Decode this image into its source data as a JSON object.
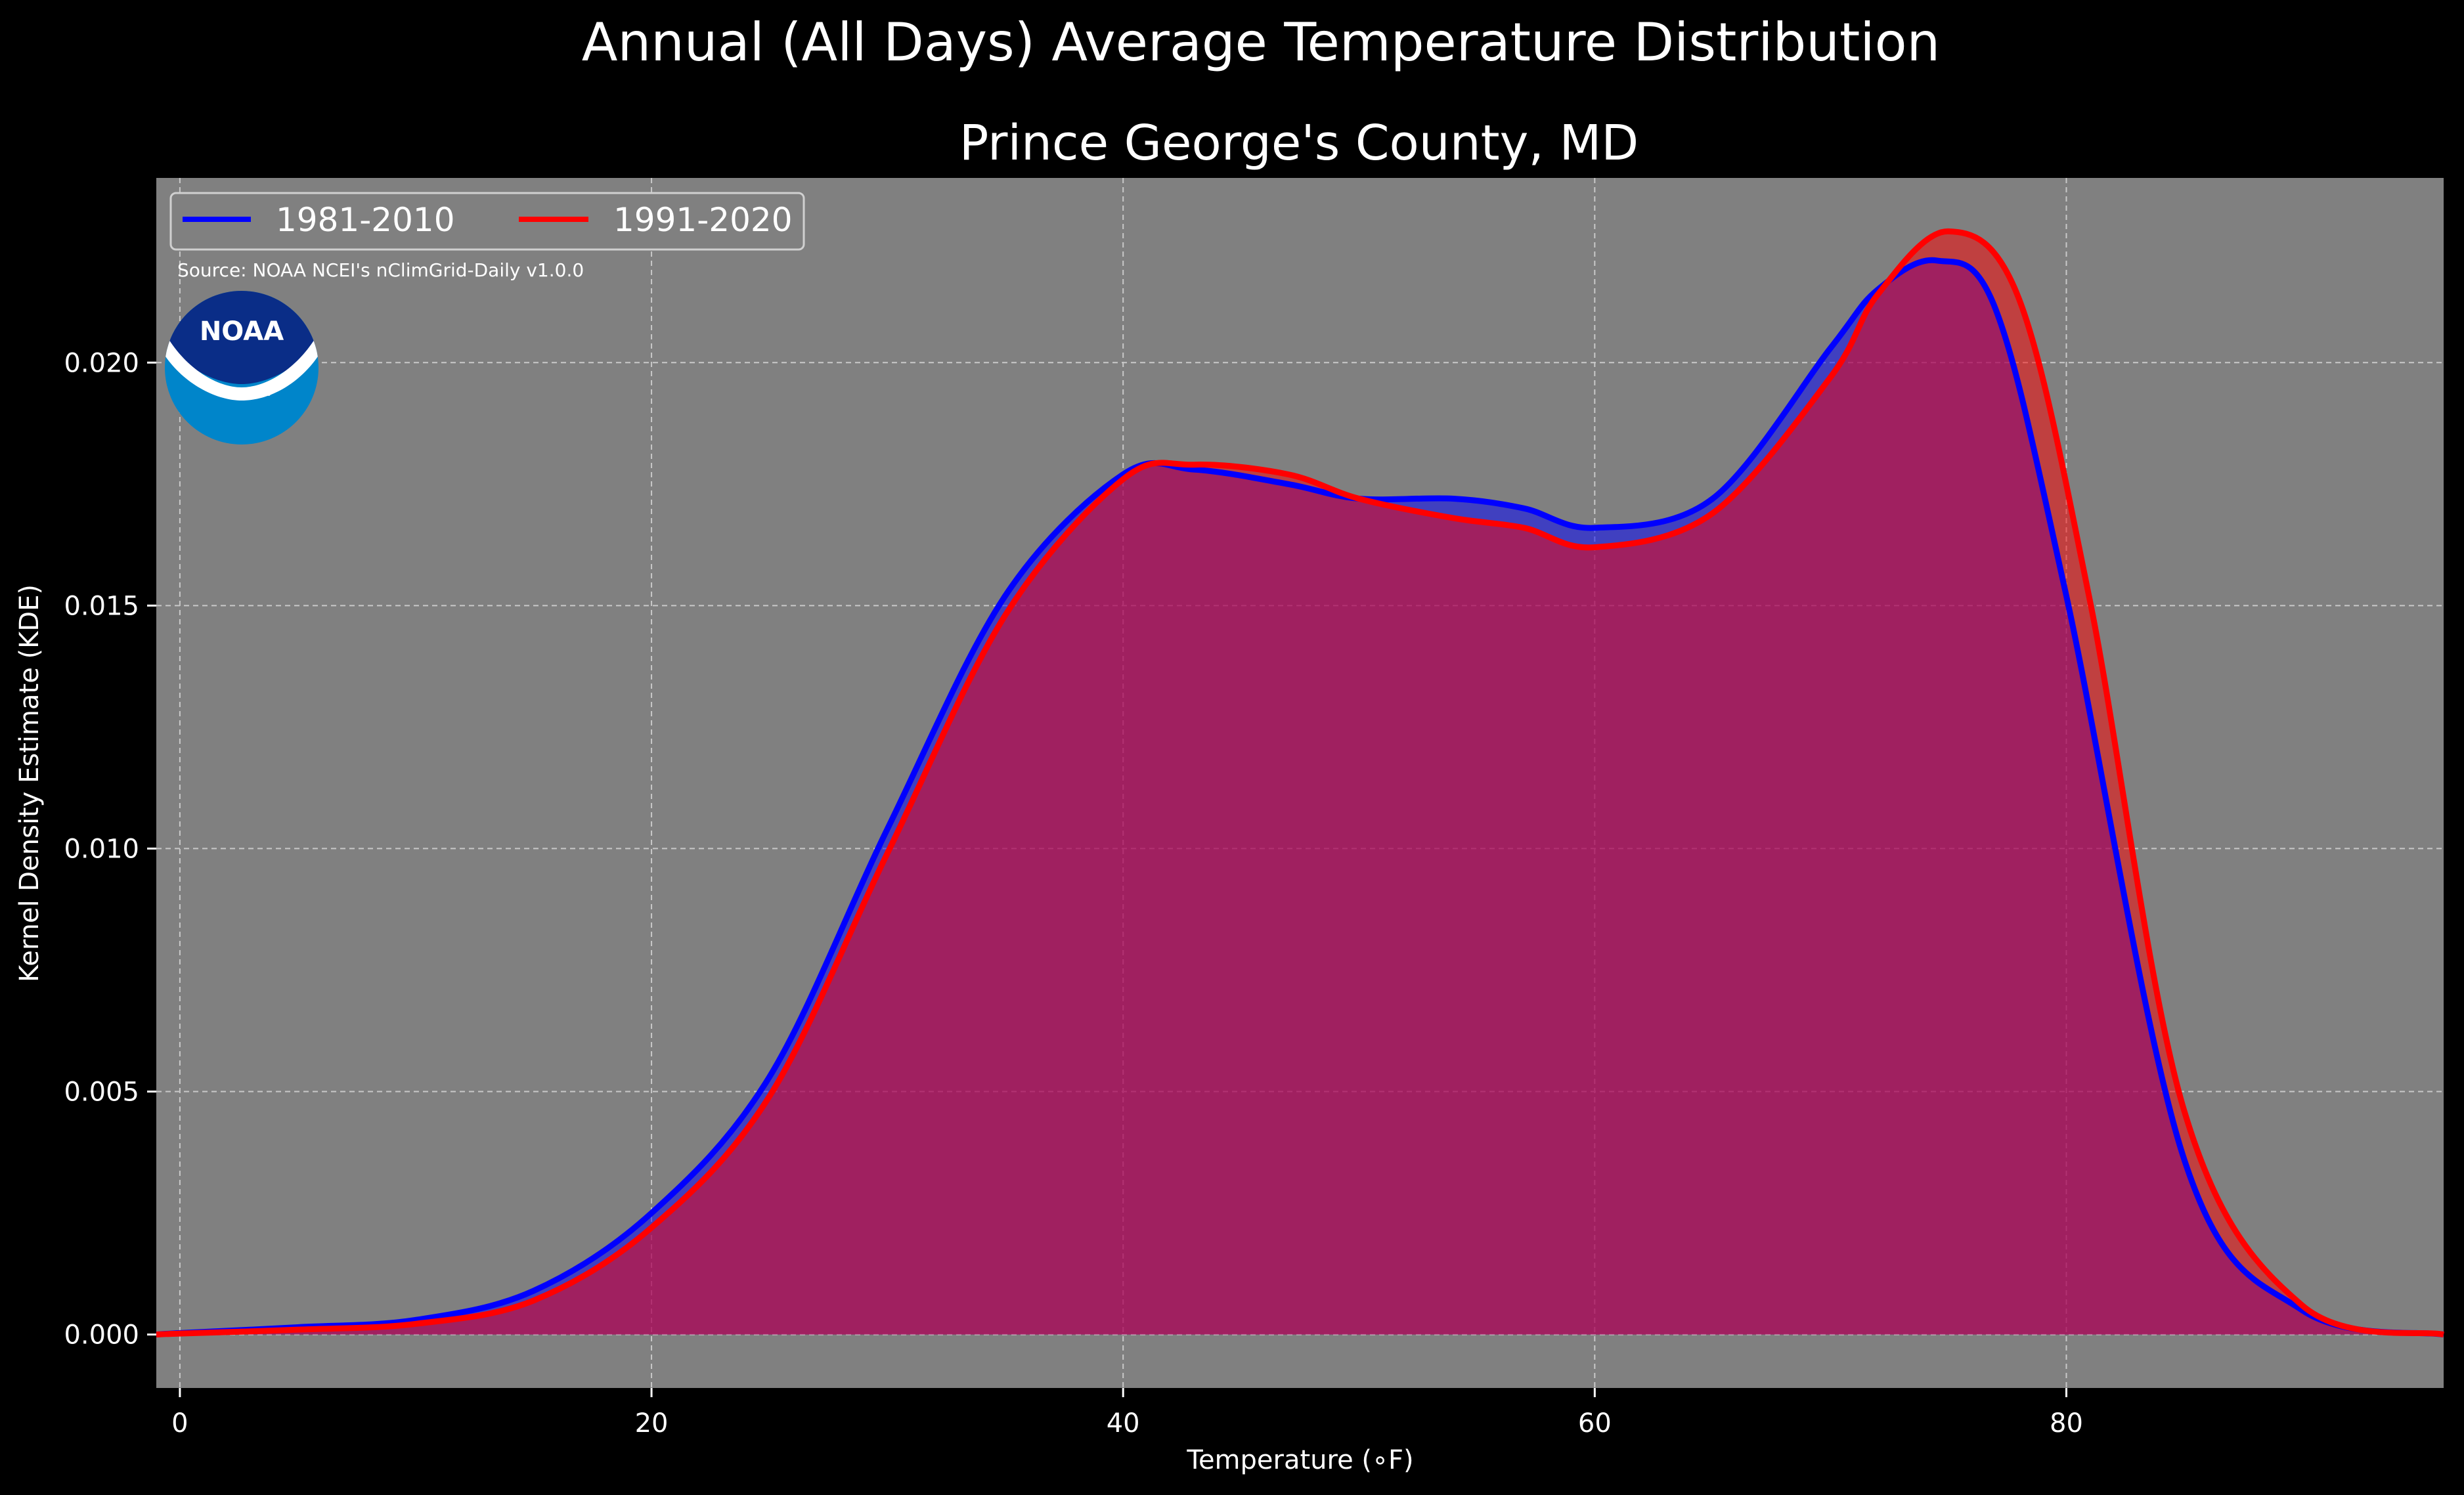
{
  "chart_data": {
    "type": "area",
    "title": "Annual (All Days) Average Temperature Distribution",
    "subtitle": "Prince George's County, MD",
    "xlabel": "Temperature (∘F)",
    "ylabel": "Kernel Density Estimate (KDE)",
    "xlim": [
      -1,
      96
    ],
    "ylim": [
      -0.0011,
      0.0238
    ],
    "xticks": [
      0,
      20,
      40,
      60,
      80
    ],
    "xtick_labels": [
      "0",
      "20",
      "40",
      "60",
      "80"
    ],
    "yticks": [
      0.0,
      0.005,
      0.01,
      0.015,
      0.02
    ],
    "ytick_labels": [
      "0.000",
      "0.005",
      "0.010",
      "0.015",
      "0.020"
    ],
    "grid": true,
    "legend": "top-left",
    "source_note": "Source: NOAA NCEI's nClimGrid-Daily v1.0.0",
    "logo_text": "NOAA",
    "colors": {
      "figure_bg": "#000000",
      "axes_bg": "#808080",
      "series_1": "#0000ff",
      "series_2": "#ff0000",
      "overlap_fill": "#9e1f5c",
      "logo_dark": "#0a2d87",
      "logo_light": "#0085ca"
    },
    "series": [
      {
        "name": "1981-2010",
        "color": "#0000ff",
        "x": [
          -1,
          0,
          5,
          10,
          15,
          20,
          25,
          30,
          35,
          40,
          43,
          47,
          50,
          54,
          57,
          60,
          65,
          70,
          72,
          74.5,
          77,
          80,
          85,
          90,
          96
        ],
        "y": [
          0.0,
          3e-05,
          0.00015,
          0.0003,
          0.0009,
          0.0025,
          0.0053,
          0.0104,
          0.0152,
          0.0177,
          0.0178,
          0.0175,
          0.0172,
          0.0172,
          0.017,
          0.0166,
          0.0172,
          0.0203,
          0.0215,
          0.0221,
          0.0211,
          0.0152,
          0.0036,
          0.0005,
          0.0
        ]
      },
      {
        "name": "1991-2020",
        "color": "#ff0000",
        "x": [
          -1,
          0,
          5,
          10,
          15,
          20,
          25,
          30,
          35,
          40,
          43,
          47,
          50,
          54,
          57,
          60,
          65,
          70,
          72,
          75,
          78,
          81,
          85,
          90,
          96
        ],
        "y": [
          0.0,
          2e-05,
          0.0001,
          0.00022,
          0.0007,
          0.0022,
          0.0049,
          0.0099,
          0.0148,
          0.0176,
          0.0179,
          0.0177,
          0.0172,
          0.0168,
          0.0166,
          0.0162,
          0.0169,
          0.0197,
          0.0214,
          0.0227,
          0.0213,
          0.0151,
          0.0046,
          0.0006,
          0.0
        ]
      }
    ]
  }
}
